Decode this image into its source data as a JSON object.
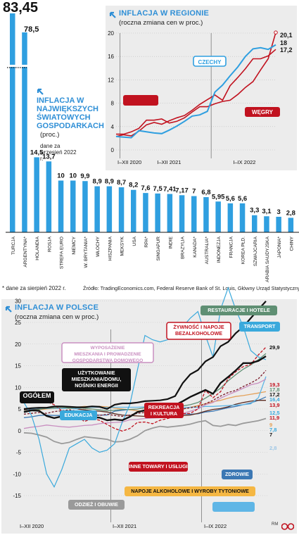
{
  "top_left": {
    "title": "INFLACJA W NAJWIĘKSZYCH ŚWIATOWYCH GOSPODARKACH",
    "unit": "(proc.)",
    "note": "dane za wrzesień 2022 r.",
    "footnote": "* dane za sierpień 2022 r.",
    "arrow_icon": "diagonal-arrow-icon"
  },
  "top_right": {
    "title": "INFLACJA W REGIONIE",
    "unit": "(roczna zmiana cen w proc.)",
    "arrow_icon": "diagonal-arrow-icon"
  },
  "source": "Źródło: TradingEconomics.com, Federal Reserve Bank of St. Louis, Główny Urząd Statystyczny",
  "bottom": {
    "title": "INFLACJA W POLSCE",
    "unit": "(roczna zmiana cen w proc.)",
    "arrow_icon": "diagonal-arrow-icon"
  },
  "credits": {
    "author": "RM",
    "logo": "dziennik-gazeta-prawna-logo"
  },
  "colors": {
    "accent_blue": "#2f9fe0",
    "hungary_red": "#c1121f",
    "black": "#111111"
  },
  "chart_data": [
    {
      "type": "bar",
      "title": "INFLACJA W NAJWIĘKSZYCH ŚWIATOWYCH GOSPODARKACH",
      "ylabel": "(proc.)",
      "categories": [
        "TURCJA",
        "ARGENTYNA*",
        "HOLANDIA",
        "ROSJA",
        "STREFA EURO",
        "NIEMCY",
        "W. BRYTANIA*",
        "WŁOCHY",
        "HISZPANIA",
        "MEKSYK",
        "USA",
        "RPA*",
        "SINGAPUR",
        "INDIE",
        "BRAZYLIA",
        "KANADA*",
        "AUSTRALIA*",
        "INDONEZJA",
        "FRANCJA",
        "KOREA PŁD.",
        "SZWAJCARIA",
        "ARABIA SAUDYJSKA",
        "JAPONIA*",
        "CHINY"
      ],
      "values": [
        83.45,
        78.5,
        14.5,
        13.7,
        10,
        10,
        9.9,
        8.9,
        8.9,
        8.7,
        8.2,
        7.6,
        7.5,
        7.41,
        7.17,
        7,
        6.8,
        5.95,
        5.6,
        5.6,
        3.3,
        3.1,
        3,
        2.8
      ],
      "value_labels": [
        "83,45",
        "78,5",
        "14,5",
        "13,7",
        "10",
        "10",
        "9,9",
        "8,9",
        "8,9",
        "8,7",
        "8,2",
        "7,6",
        "7,5",
        "7,41",
        "7,17",
        "7",
        "6,8",
        "5,95",
        "5,6",
        "5,6",
        "3,3",
        "3,1",
        "3",
        "2,8"
      ],
      "color": "#2f9fe0"
    },
    {
      "type": "line",
      "title": "INFLACJA W REGIONIE",
      "ylabel": "(roczna zmiana cen w proc.)",
      "x": [
        "2020-12",
        "2021-01",
        "2021-02",
        "2021-03",
        "2021-04",
        "2021-05",
        "2021-06",
        "2021-07",
        "2021-08",
        "2021-09",
        "2021-10",
        "2021-11",
        "2021-12",
        "2022-01",
        "2022-02",
        "2022-03",
        "2022-04",
        "2022-05",
        "2022-06",
        "2022-07",
        "2022-08",
        "2022-09"
      ],
      "x_ticks": [
        "I–XII 2020",
        "I–XII 2021",
        "I–IX 2022"
      ],
      "yticks": [
        0,
        4,
        8,
        12,
        16,
        20
      ],
      "ylim": [
        0,
        20
      ],
      "series": [
        {
          "name": "CZECHY",
          "color": "#2f9fe0",
          "values": [
            2.3,
            2.2,
            2.1,
            3.3,
            3.1,
            2.9,
            2.8,
            3.4,
            4.1,
            4.9,
            5.8,
            6.0,
            6.6,
            9.9,
            11.1,
            12.7,
            14.2,
            16.0,
            17.3,
            17.5,
            17.2,
            18.0
          ]
        },
        {
          "name": "WĘGRY",
          "color": "#c1121f",
          "values": [
            2.7,
            2.7,
            3.1,
            3.7,
            5.1,
            5.1,
            5.3,
            4.6,
            4.9,
            5.5,
            6.5,
            7.4,
            7.4,
            7.9,
            8.3,
            8.5,
            9.5,
            10.7,
            11.7,
            13.7,
            15.6,
            20.1
          ]
        },
        {
          "name": "",
          "color": "#c1121f",
          "values": [
            2.3,
            2.6,
            2.4,
            3.2,
            4.3,
            4.7,
            4.4,
            5.0,
            5.5,
            5.9,
            6.8,
            7.8,
            8.6,
            9.4,
            8.5,
            11.0,
            12.4,
            13.9,
            15.6,
            15.6,
            16.1,
            17.2
          ]
        }
      ],
      "end_labels": [
        "20,1",
        "18",
        "17,2"
      ],
      "labels": {
        "czechy": "CZECHY",
        "wegry": "WĘGRY"
      }
    },
    {
      "type": "line",
      "title": "INFLACJA W POLSCE",
      "ylabel": "(roczna zmiana cen w proc.)",
      "x": [
        "2020-01",
        "2020-02",
        "2020-03",
        "2020-04",
        "2020-05",
        "2020-06",
        "2020-07",
        "2020-08",
        "2020-09",
        "2020-10",
        "2020-11",
        "2020-12",
        "2021-01",
        "2021-02",
        "2021-03",
        "2021-04",
        "2021-05",
        "2021-06",
        "2021-07",
        "2021-08",
        "2021-09",
        "2021-10",
        "2021-11",
        "2021-12",
        "2022-01",
        "2022-02",
        "2022-03",
        "2022-04",
        "2022-05",
        "2022-06",
        "2022-07",
        "2022-08",
        "2022-09"
      ],
      "x_ticks": [
        "I–XII 2020",
        "I–XII 2021",
        "I–IX 2022"
      ],
      "yticks": [
        -15,
        -10,
        -5,
        0,
        5,
        10,
        15,
        20,
        25,
        30
      ],
      "ylim": [
        -17,
        33
      ],
      "series": [
        {
          "name": "RESTAURACJE I HOTELE",
          "color": "#5f8f73",
          "values": [
            4.5,
            4.7,
            4.9,
            5.2,
            5.3,
            5.4,
            5.2,
            5.3,
            5.2,
            5.0,
            4.8,
            4.6,
            4.7,
            4.9,
            4.9,
            5.0,
            5.3,
            5.4,
            5.4,
            5.5,
            5.6,
            5.7,
            6.0,
            6.5,
            7.5,
            8.6,
            9.8,
            11.5,
            12.9,
            14.2,
            15.2,
            16.4,
            17.8
          ]
        },
        {
          "name": "TRANSPORT",
          "color": "#3aa9dc",
          "values": [
            6.5,
            3.5,
            -2.0,
            -10.0,
            -13.0,
            -9.0,
            -4.0,
            -3.0,
            -2.0,
            -4.0,
            -5.0,
            -4.5,
            -3.0,
            2.0,
            6.0,
            14.0,
            22.0,
            21.0,
            20.5,
            21.0,
            22.0,
            24.0,
            26.0,
            27.5,
            22.0,
            17.0,
            28.0,
            33.0,
            28.0,
            24.0,
            18.5,
            17.0,
            16.4
          ]
        },
        {
          "name": "ŻYWNOŚĆ I NAPOJE BEZALKOHOLOWE",
          "color": "#c1121f",
          "values": [
            8.0,
            7.6,
            6.9,
            6.7,
            6.0,
            4.6,
            4.1,
            3.4,
            2.1,
            2.8,
            2.4,
            1.4,
            0.5,
            -0.1,
            0.5,
            1.9,
            2.0,
            1.6,
            2.4,
            2.8,
            3.2,
            3.9,
            4.0,
            5.0,
            9.3,
            7.6,
            9.0,
            12.0,
            13.6,
            14.8,
            15.3,
            17.5,
            19.3
          ]
        },
        {
          "name": "OGÓŁEM",
          "color": "#111111",
          "values": [
            4.3,
            4.7,
            4.6,
            3.4,
            2.9,
            3.3,
            3.0,
            2.9,
            3.2,
            3.1,
            3.0,
            2.4,
            2.6,
            2.4,
            3.2,
            4.3,
            4.7,
            4.4,
            5.0,
            5.5,
            5.9,
            6.8,
            7.8,
            8.6,
            9.4,
            8.5,
            11.0,
            12.4,
            13.9,
            15.6,
            15.6,
            16.1,
            17.2
          ]
        },
        {
          "name": "UŻYTKOWANIE MIESZKANIA/DOMU, NOŚNIKI ENERGII",
          "color": "#111111",
          "values": [
            5.0,
            5.2,
            5.3,
            5.3,
            5.6,
            5.6,
            5.5,
            5.4,
            5.4,
            5.6,
            5.5,
            5.0,
            6.0,
            6.3,
            6.3,
            6.5,
            6.8,
            6.9,
            7.0,
            7.3,
            8.0,
            11.0,
            13.0,
            14.0,
            16.0,
            17.0,
            19.5,
            20.5,
            22.5,
            24.0,
            26.0,
            28.0,
            29.9
          ]
        },
        {
          "name": "WYPOSAŻENIE MIESZKANIA I PROWADZENIE GOSPODARSTWA DOMOWEGO",
          "color": "#c98fc0",
          "values": [
            0.5,
            0.8,
            1.0,
            1.3,
            1.1,
            0.9,
            0.8,
            1.0,
            1.2,
            1.3,
            1.6,
            1.8,
            1.9,
            2.0,
            2.5,
            2.6,
            2.8,
            2.9,
            3.0,
            3.4,
            3.7,
            4.0,
            4.5,
            5.0,
            6.0,
            6.5,
            7.5,
            8.3,
            9.0,
            9.8,
            10.6,
            11.0,
            11.9
          ]
        },
        {
          "name": "REKREACJA I KULTURA",
          "color": "#7a1a2a",
          "values": [
            3.8,
            4.0,
            4.2,
            4.0,
            4.4,
            4.6,
            4.8,
            4.5,
            4.1,
            3.7,
            3.5,
            3.8,
            3.5,
            3.3,
            3.6,
            4.0,
            4.2,
            4.5,
            4.6,
            4.5,
            4.8,
            5.0,
            5.3,
            5.6,
            6.2,
            7.0,
            8.0,
            8.8,
            9.3,
            10.2,
            11.0,
            12.0,
            13.9
          ]
        },
        {
          "name": "EDUKACJA",
          "color": "#5fb6e6",
          "values": [
            5.0,
            5.0,
            5.2,
            5.1,
            5.2,
            5.1,
            5.2,
            5.0,
            5.4,
            5.4,
            5.4,
            5.3,
            5.4,
            5.4,
            5.4,
            5.4,
            5.5,
            5.5,
            5.4,
            5.4,
            5.1,
            5.3,
            5.4,
            5.4,
            5.6,
            5.6,
            5.7,
            5.8,
            5.9,
            6.0,
            6.2,
            7.6,
            12.5
          ]
        },
        {
          "name": "INNE TOWARY I USŁUGI",
          "color": "#e4a15a",
          "values": [
            4.5,
            4.6,
            4.8,
            5.0,
            5.1,
            5.2,
            5.1,
            5.4,
            5.6,
            5.5,
            5.6,
            5.5,
            5.2,
            5.0,
            4.8,
            4.6,
            4.5,
            4.4,
            4.3,
            4.5,
            4.8,
            5.0,
            5.4,
            5.8,
            6.2,
            6.7,
            7.0,
            7.5,
            7.9,
            8.1,
            8.4,
            8.7,
            9.0
          ]
        },
        {
          "name": "ZDROWIE",
          "color": "#3c78b4",
          "values": [
            3.0,
            3.2,
            3.5,
            3.6,
            3.5,
            3.5,
            3.7,
            3.8,
            3.8,
            3.7,
            3.6,
            3.6,
            4.5,
            4.7,
            4.9,
            4.6,
            4.5,
            4.4,
            4.3,
            4.2,
            4.0,
            3.9,
            3.8,
            3.9,
            4.3,
            4.5,
            4.9,
            5.3,
            5.6,
            6.0,
            6.4,
            7.0,
            7.8
          ]
        },
        {
          "name": "NAPOJE ALKOHOLOWE I WYROBY TYTONIOWE",
          "color": "#5a2a1f",
          "values": [
            4.8,
            4.9,
            5.0,
            5.2,
            5.3,
            5.4,
            5.3,
            5.0,
            4.8,
            4.6,
            4.5,
            4.3,
            3.9,
            3.6,
            3.5,
            3.4,
            3.3,
            3.2,
            3.1,
            3.2,
            3.3,
            3.5,
            3.6,
            4.0,
            4.5,
            4.9,
            5.1,
            5.5,
            6.1,
            6.5,
            6.8,
            7.0,
            7.0
          ]
        },
        {
          "name": "ODZIEŻ I OBUWIE",
          "color": "#9a9a9a",
          "values": [
            -0.5,
            -0.6,
            -1.0,
            -1.5,
            -2.5,
            -3.0,
            -2.7,
            -2.0,
            -1.4,
            -1.6,
            -1.8,
            -2.0,
            -2.6,
            -2.5,
            -2.0,
            -1.2,
            0.0,
            0.6,
            1.0,
            0.8,
            1.0,
            1.2,
            1.5,
            2.0,
            2.3,
            1.2,
            1.0,
            1.4,
            1.2,
            1.7,
            2.0,
            2.3,
            2.8
          ]
        }
      ],
      "end_labels": [
        "29,9",
        "19,3",
        "17,8",
        "17,2",
        "16,4",
        "13,9",
        "12,5",
        "11,9",
        "9",
        "7,8",
        "7",
        "2,8"
      ],
      "labels": {
        "restaurants": "RESTAURACJE I HOTELE",
        "transport": "TRANSPORT",
        "food": "ŻYWNOŚĆ I NAPOJE BEZALKOHOLOWE",
        "furnishing": "WYPOSAŻENIE MIESZKANIA I PROWADZENIE GOSPODARSTWA DOMOWEGO",
        "housing": "UŻYTKOWANIE MIESZKANIA/DOMU, NOŚNIKI ENERGII",
        "total": "OGÓŁEM",
        "education": "EDUKACJA",
        "recreation": "REKREACJA I KULTURA",
        "other": "INNE TOWARY I USŁUGI",
        "health": "ZDROWIE",
        "alcohol": "NAPOJE ALKOHOLOWE I WYROBY TYTONIOWE",
        "clothing": "ODZIEŻ I OBUWIE"
      }
    }
  ]
}
